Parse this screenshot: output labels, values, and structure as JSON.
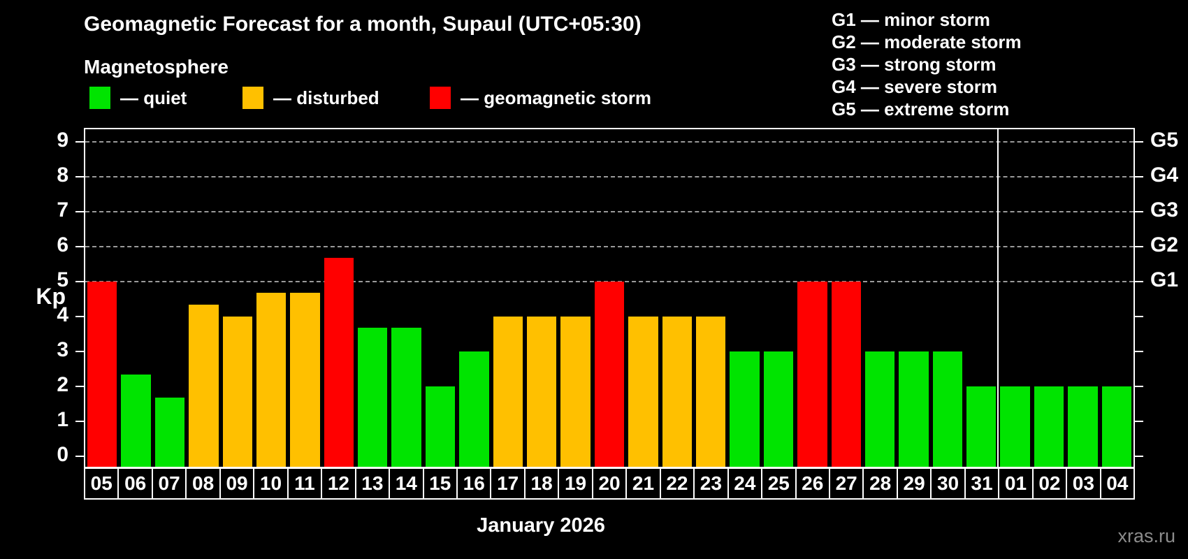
{
  "title": "Geomagnetic Forecast for a month, Supaul (UTC+05:30)",
  "subtitle": "Magnetosphere",
  "legend": {
    "quiet_label": "— quiet",
    "disturbed_label": "— disturbed",
    "storm_label": "— geomagnetic storm"
  },
  "g_legend": [
    "G1 — minor storm",
    "G2 — moderate storm",
    "G3 — strong storm",
    "G4 — severe storm",
    "G5 — extreme storm"
  ],
  "axis": {
    "kp_label": "Kp",
    "kp_ticks": [
      0,
      1,
      2,
      3,
      4,
      5,
      6,
      7,
      8,
      9
    ],
    "g_ticks": [
      {
        "kp": 5,
        "label": "G1"
      },
      {
        "kp": 6,
        "label": "G2"
      },
      {
        "kp": 7,
        "label": "G3"
      },
      {
        "kp": 8,
        "label": "G4"
      },
      {
        "kp": 9,
        "label": "G5"
      }
    ]
  },
  "month_label": "January 2026",
  "watermark": "xras.ru",
  "colors": {
    "quiet": "#00e400",
    "disturbed": "#ffc000",
    "storm": "#ff0000",
    "grid": "#9a9a9a",
    "frame": "#ffffff",
    "watermark": "#8c8c8c"
  },
  "chart_data": {
    "type": "bar",
    "title": "Geomagnetic Forecast for a month, Supaul (UTC+05:30)",
    "xlabel": "January 2026",
    "ylabel": "Kp",
    "ylim": [
      0,
      9
    ],
    "grid": "dashed horizontal lines at Kp 5-9 (G1-G5)",
    "legend_position": "top-left",
    "categories": [
      "05",
      "06",
      "07",
      "08",
      "09",
      "10",
      "11",
      "12",
      "13",
      "14",
      "15",
      "16",
      "17",
      "18",
      "19",
      "20",
      "21",
      "22",
      "23",
      "24",
      "25",
      "26",
      "27",
      "28",
      "29",
      "30",
      "31",
      "01",
      "02",
      "03",
      "04"
    ],
    "values": [
      5.0,
      2.33,
      1.67,
      4.33,
      4.0,
      4.67,
      4.67,
      5.67,
      3.67,
      3.67,
      2.0,
      3.0,
      4.0,
      4.0,
      4.0,
      5.0,
      4.0,
      4.0,
      4.0,
      3.0,
      3.0,
      5.0,
      5.0,
      3.0,
      3.0,
      3.0,
      2.0,
      2.0,
      2.0,
      2.0,
      2.0
    ],
    "statuses": [
      "storm",
      "quiet",
      "quiet",
      "disturbed",
      "disturbed",
      "disturbed",
      "disturbed",
      "storm",
      "quiet",
      "quiet",
      "quiet",
      "quiet",
      "disturbed",
      "disturbed",
      "disturbed",
      "storm",
      "disturbed",
      "disturbed",
      "disturbed",
      "quiet",
      "quiet",
      "storm",
      "storm",
      "quiet",
      "quiet",
      "quiet",
      "quiet",
      "quiet",
      "quiet",
      "quiet",
      "quiet"
    ],
    "month_divider_after_index": 26,
    "series_note": "Kp index forecast per day; color = quiet/disturbed/geomagnetic storm"
  }
}
